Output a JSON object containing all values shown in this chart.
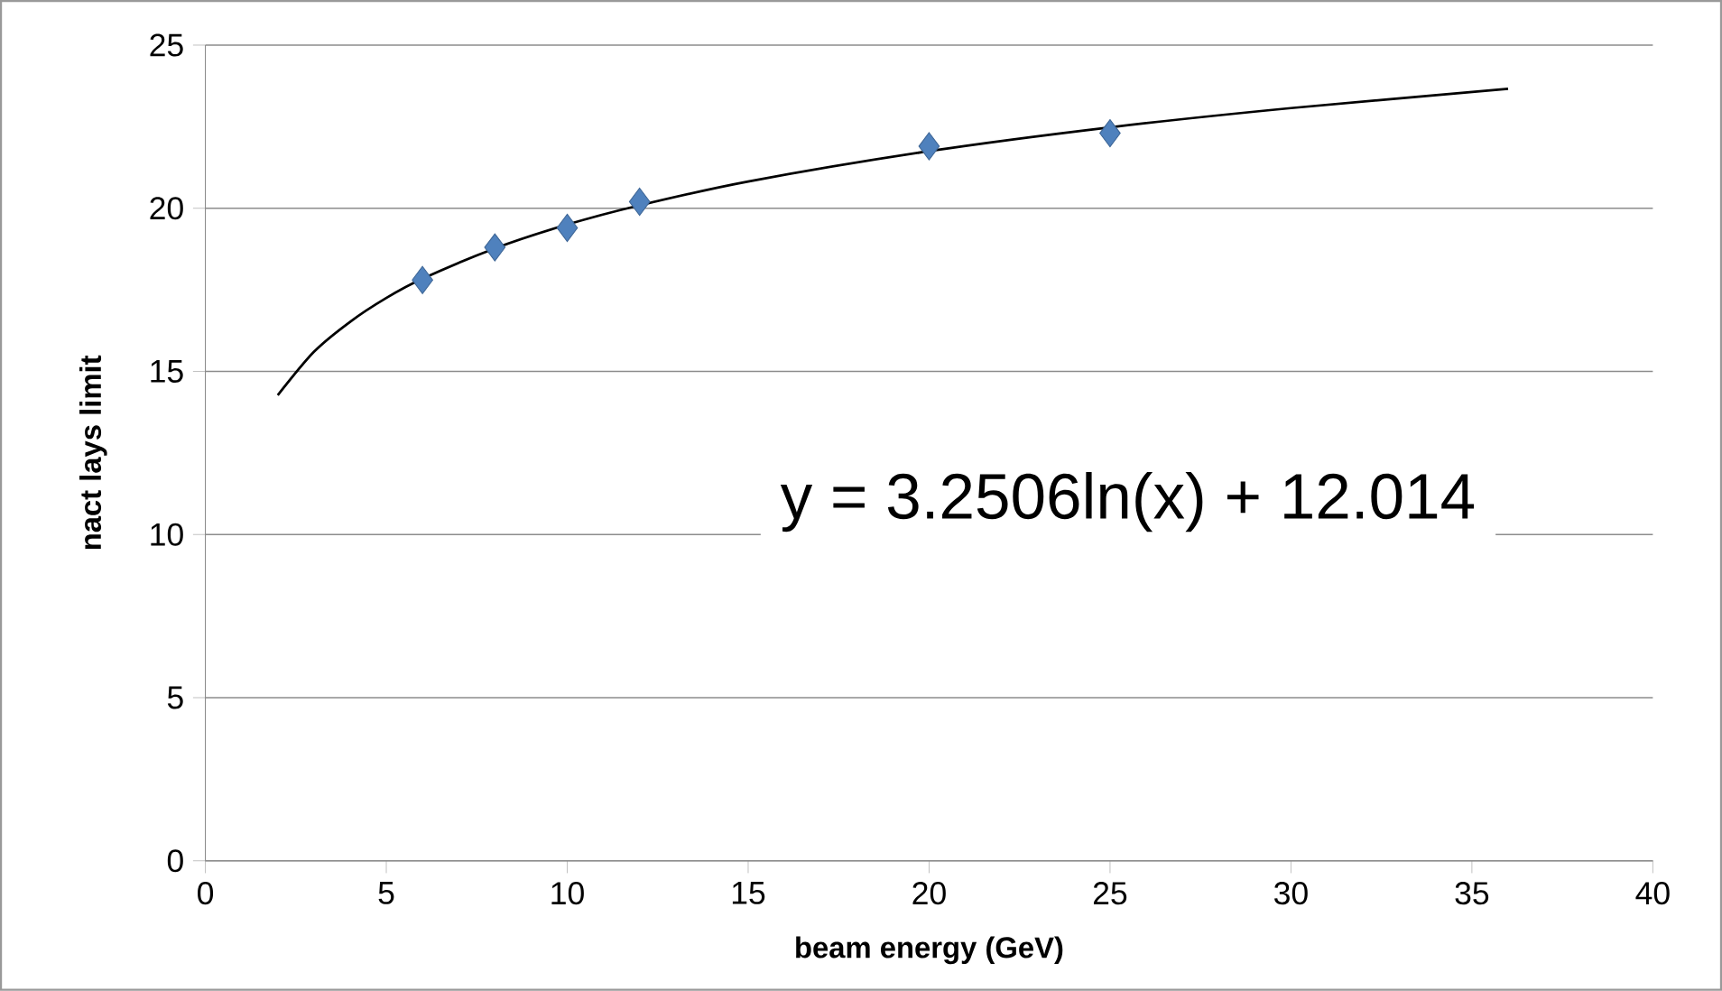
{
  "chart_data": {
    "type": "scatter",
    "xlabel": "beam energy (GeV)",
    "ylabel": "nact lays limit",
    "xlim": [
      0,
      40
    ],
    "xticks": [
      0,
      5,
      10,
      15,
      20,
      25,
      30,
      35,
      40
    ],
    "ylim": [
      0,
      25
    ],
    "yticks": [
      0,
      5,
      10,
      15,
      20,
      25
    ],
    "grid": "y",
    "series": [
      {
        "color": "#4f81bd",
        "marker": "diamond",
        "x": [
          6,
          8,
          10,
          12,
          20,
          25
        ],
        "values": [
          17.8,
          18.8,
          19.4,
          20.2,
          21.9,
          22.3
        ]
      },
      {
        "type": "line",
        "color": "#000000",
        "marker": "none",
        "line_style": "solid",
        "x": [
          2,
          3,
          4,
          5,
          6,
          8,
          10,
          12,
          15,
          20,
          25,
          30,
          36
        ],
        "values": [
          14.27,
          15.6,
          16.52,
          17.25,
          17.84,
          18.77,
          19.5,
          20.09,
          20.82,
          21.75,
          22.48,
          23.07,
          23.66
        ]
      }
    ],
    "annotations": [
      "y = 3.2506ln(x) + 12.014"
    ]
  }
}
